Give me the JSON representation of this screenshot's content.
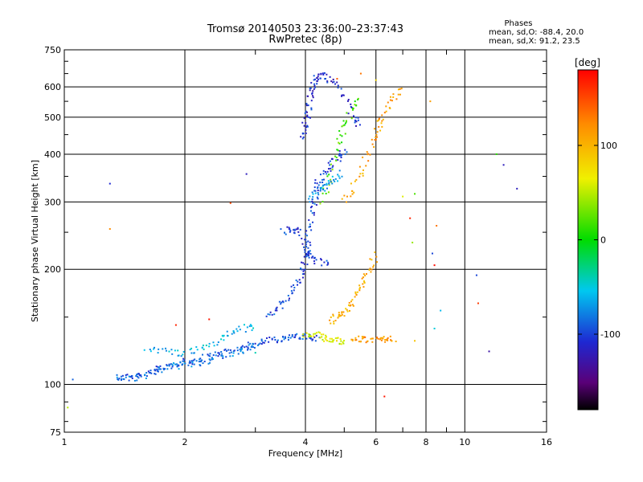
{
  "chart_data": {
    "type": "scatter",
    "title": "Tromsø 20140503 23:36:00–23:37:43",
    "subtitle": "RwPretec (8p)",
    "xlabel": "Frequency [MHz]",
    "ylabel": "Stationary phase Virtual Height [km]",
    "x_scale": "log",
    "y_scale": "log",
    "xlim": [
      1,
      16
    ],
    "ylim": [
      75,
      750
    ],
    "x_ticks": [
      1,
      2,
      4,
      6,
      8,
      10,
      16
    ],
    "x_tick_labels": [
      "1",
      "2",
      "4",
      "6",
      "8",
      "10",
      "16"
    ],
    "x_minor_ticks": [
      3,
      5,
      7,
      9
    ],
    "y_ticks": [
      75,
      100,
      200,
      300,
      400,
      500,
      600,
      750
    ],
    "y_tick_labels": [
      "75",
      "100",
      "200",
      "300",
      "400",
      "500",
      "600",
      "750"
    ],
    "grid": true,
    "phase_stats": {
      "heading": "Phases",
      "line_o": "mean, sd,O: -88.4, 20.0",
      "line_x": "mean, sd,X:  91.2, 23.5"
    },
    "colorbar": {
      "label": "[deg]",
      "range": [
        -180,
        180
      ],
      "ticks": [
        -100,
        0,
        100
      ],
      "tick_labels": [
        "-100",
        "0",
        "100"
      ],
      "colormap": "rainbow"
    },
    "traces": [
      {
        "name": "",
        "points": [
          [
            1.35,
            104
          ],
          [
            1.45,
            105
          ],
          [
            1.55,
            106
          ],
          [
            1.65,
            108
          ],
          [
            1.75,
            110
          ],
          [
            1.85,
            112
          ],
          [
            1.95,
            114
          ],
          [
            2.05,
            115
          ],
          [
            2.2,
            117
          ],
          [
            2.35,
            119
          ],
          [
            2.5,
            121
          ],
          [
            2.7,
            124
          ],
          [
            2.9,
            127
          ],
          [
            3.1,
            129
          ],
          [
            3.3,
            131
          ],
          [
            3.5,
            132
          ],
          [
            3.7,
            133
          ],
          [
            3.9,
            133
          ],
          [
            4.1,
            133
          ],
          [
            4.3,
            132
          ]
        ],
        "phase": -95
      },
      {
        "name": "",
        "points": [
          [
            1.35,
            103
          ],
          [
            1.5,
            104
          ],
          [
            1.7,
            108
          ],
          [
            1.9,
            112
          ],
          [
            2.1,
            113
          ],
          [
            2.3,
            116
          ],
          [
            2.6,
            120
          ],
          [
            2.8,
            123
          ],
          [
            3.0,
            125
          ]
        ],
        "phase": -85
      },
      {
        "name": "",
        "points": [
          [
            1.6,
            124
          ],
          [
            1.8,
            122
          ],
          [
            2.0,
            121
          ],
          [
            2.2,
            124
          ],
          [
            2.4,
            129
          ],
          [
            2.6,
            136
          ],
          [
            2.8,
            140
          ],
          [
            3.0,
            142
          ]
        ],
        "phase": -60
      },
      {
        "name": "",
        "points": [
          [
            3.2,
            150
          ],
          [
            3.4,
            158
          ],
          [
            3.6,
            168
          ],
          [
            3.8,
            180
          ],
          [
            3.9,
            195
          ],
          [
            4.0,
            210
          ],
          [
            4.05,
            230
          ],
          [
            4.1,
            260
          ],
          [
            4.2,
            290
          ],
          [
            4.25,
            320
          ],
          [
            4.3,
            340
          ],
          [
            4.5,
            360
          ],
          [
            4.7,
            380
          ],
          [
            4.9,
            400
          ],
          [
            5.0,
            405
          ]
        ],
        "phase": -100
      },
      {
        "name": "",
        "points": [
          [
            3.5,
            250
          ],
          [
            3.7,
            255
          ],
          [
            3.9,
            250
          ],
          [
            4.0,
            225
          ],
          [
            4.1,
            215
          ],
          [
            4.3,
            210
          ],
          [
            4.6,
            205
          ]
        ],
        "phase": -105
      },
      {
        "name": "",
        "points": [
          [
            3.95,
            440
          ],
          [
            4.0,
            470
          ],
          [
            4.05,
            510
          ],
          [
            4.1,
            550
          ],
          [
            4.15,
            590
          ],
          [
            4.2,
            620
          ],
          [
            4.3,
            640
          ],
          [
            4.5,
            640
          ],
          [
            4.7,
            620
          ],
          [
            5.0,
            560
          ],
          [
            5.3,
            500
          ],
          [
            5.5,
            470
          ]
        ],
        "phase": -110
      },
      {
        "name": "",
        "points": [
          [
            4.0,
            135
          ],
          [
            4.2,
            135
          ],
          [
            4.4,
            133
          ],
          [
            4.6,
            131
          ],
          [
            4.8,
            130
          ],
          [
            5.0,
            130
          ]
        ],
        "phase": 60
      },
      {
        "name": "",
        "points": [
          [
            5.2,
            131
          ],
          [
            5.5,
            131
          ],
          [
            5.8,
            131
          ],
          [
            6.1,
            131
          ],
          [
            6.4,
            132
          ],
          [
            6.7,
            132
          ]
        ],
        "phase": 115
      },
      {
        "name": "",
        "points": [
          [
            4.6,
            145
          ],
          [
            4.8,
            150
          ],
          [
            5.0,
            155
          ],
          [
            5.2,
            160
          ],
          [
            5.4,
            175
          ],
          [
            5.6,
            185
          ],
          [
            5.8,
            200
          ],
          [
            6.0,
            220
          ]
        ],
        "phase": 100
      },
      {
        "name": "",
        "points": [
          [
            5.0,
            300
          ],
          [
            5.3,
            330
          ],
          [
            5.6,
            380
          ],
          [
            5.9,
            430
          ],
          [
            6.1,
            470
          ],
          [
            6.3,
            500
          ],
          [
            6.6,
            560
          ],
          [
            6.9,
            600
          ]
        ],
        "phase": 110
      },
      {
        "name": "",
        "points": [
          [
            4.4,
            300
          ],
          [
            4.6,
            350
          ],
          [
            4.8,
            420
          ],
          [
            5.0,
            470
          ],
          [
            5.2,
            520
          ],
          [
            5.4,
            560
          ]
        ],
        "phase": 20
      },
      {
        "name": "",
        "points": [
          [
            4.1,
            300
          ],
          [
            4.3,
            320
          ],
          [
            4.5,
            330
          ],
          [
            4.7,
            340
          ],
          [
            4.9,
            360
          ]
        ],
        "phase": -70
      }
    ],
    "sparse_points": [
      [
        1.05,
        103,
        -90
      ],
      [
        1.02,
        87,
        50
      ],
      [
        1.3,
        335,
        -110
      ],
      [
        1.3,
        255,
        120
      ],
      [
        2.6,
        298,
        150
      ],
      [
        2.85,
        355,
        -120
      ],
      [
        7.4,
        235,
        40
      ],
      [
        7.5,
        315,
        20
      ],
      [
        8.3,
        220,
        -100
      ],
      [
        8.4,
        205,
        175
      ],
      [
        10.7,
        193,
        -100
      ],
      [
        10.8,
        163,
        155
      ],
      [
        12.0,
        400,
        10
      ],
      [
        12.5,
        375,
        -120
      ],
      [
        13.5,
        325,
        -120
      ],
      [
        11.5,
        122,
        -130
      ],
      [
        8.7,
        156,
        -60
      ],
      [
        6.3,
        93,
        170
      ],
      [
        5.5,
        650,
        130
      ],
      [
        6.0,
        625,
        80
      ],
      [
        4.8,
        630,
        140
      ],
      [
        7.3,
        272,
        165
      ],
      [
        7.0,
        310,
        60
      ],
      [
        8.2,
        550,
        110
      ],
      [
        7.5,
        130,
        90
      ],
      [
        8.4,
        140,
        -50
      ],
      [
        3.0,
        121,
        -40
      ],
      [
        1.9,
        143,
        165
      ],
      [
        2.3,
        148,
        170
      ],
      [
        8.5,
        260,
        130
      ]
    ]
  }
}
